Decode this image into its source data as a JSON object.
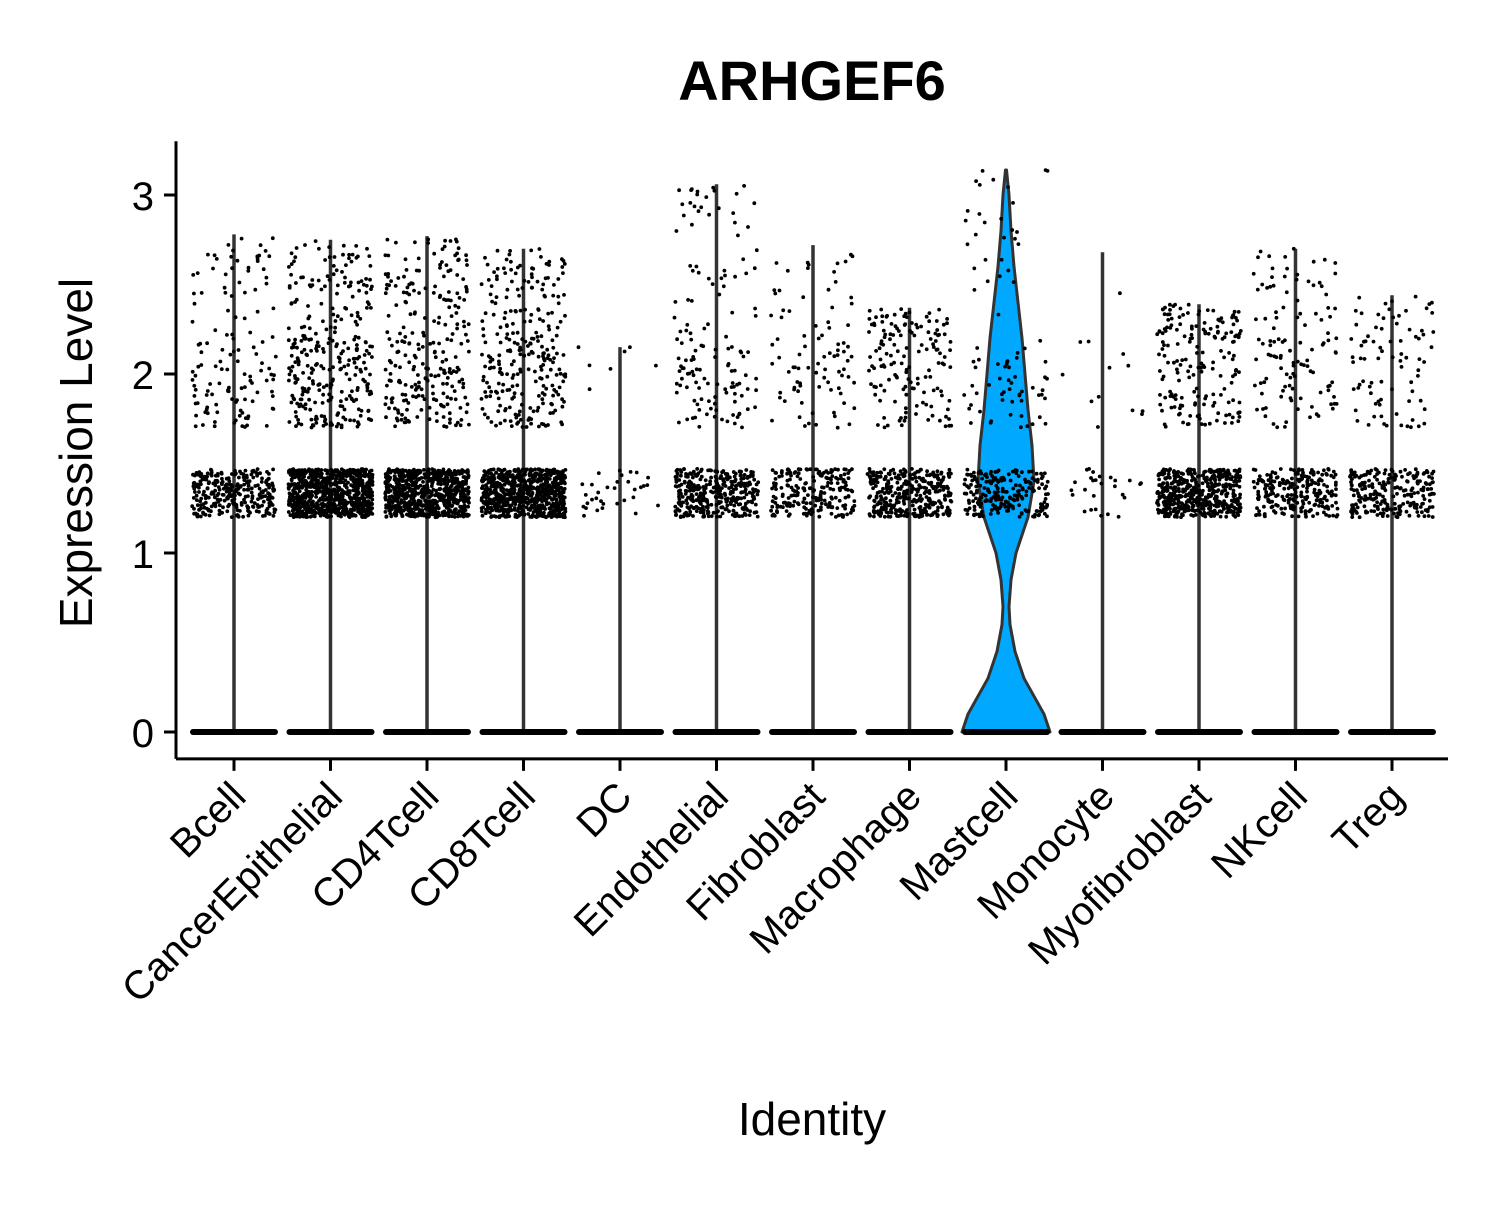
{
  "chart_data": {
    "type": "violin",
    "title": "ARHGEF6",
    "xlabel": "Identity",
    "ylabel": "Expression Level",
    "ylim": [
      -0.15,
      3.3
    ],
    "yticks": [
      0,
      1,
      2,
      3
    ],
    "ytick_labels": [
      "0",
      "1",
      "2",
      "3"
    ],
    "categories": [
      "Bcell",
      "CancerEpithelial",
      "CD4Tcell",
      "CD8Tcell",
      "DC",
      "Endothelial",
      "Fibroblast",
      "Macrophage",
      "Mastcell",
      "Monocyte",
      "Myofibroblast",
      "NKcell",
      "Treg"
    ],
    "series": [
      {
        "category": "Bcell",
        "max": 2.78,
        "highlight": false,
        "points": 420
      },
      {
        "category": "CancerEpithelial",
        "max": 2.75,
        "highlight": false,
        "points": 1100
      },
      {
        "category": "CD4Tcell",
        "max": 2.77,
        "highlight": false,
        "points": 1000
      },
      {
        "category": "CD8Tcell",
        "max": 2.7,
        "highlight": false,
        "points": 1000
      },
      {
        "category": "DC",
        "max": 2.15,
        "highlight": false,
        "points": 40
      },
      {
        "category": "Endothelial",
        "max": 3.06,
        "highlight": false,
        "points": 500
      },
      {
        "category": "Fibroblast",
        "max": 2.72,
        "highlight": false,
        "points": 300
      },
      {
        "category": "Macrophage",
        "max": 2.37,
        "highlight": false,
        "points": 500
      },
      {
        "category": "Mastcell",
        "max": 3.14,
        "highlight": true,
        "points": 300
      },
      {
        "category": "Monocyte",
        "max": 2.68,
        "highlight": false,
        "points": 40
      },
      {
        "category": "Myofibroblast",
        "max": 2.39,
        "highlight": false,
        "points": 700
      },
      {
        "category": "NKcell",
        "max": 2.7,
        "highlight": false,
        "points": 350
      },
      {
        "category": "Treg",
        "max": 2.44,
        "highlight": false,
        "points": 320
      }
    ],
    "colors": {
      "violin_fill": "#00A9FF",
      "violin_stroke": "#333333",
      "point": "#000000",
      "axis": "#000000"
    },
    "grid": false,
    "legend": "none"
  }
}
